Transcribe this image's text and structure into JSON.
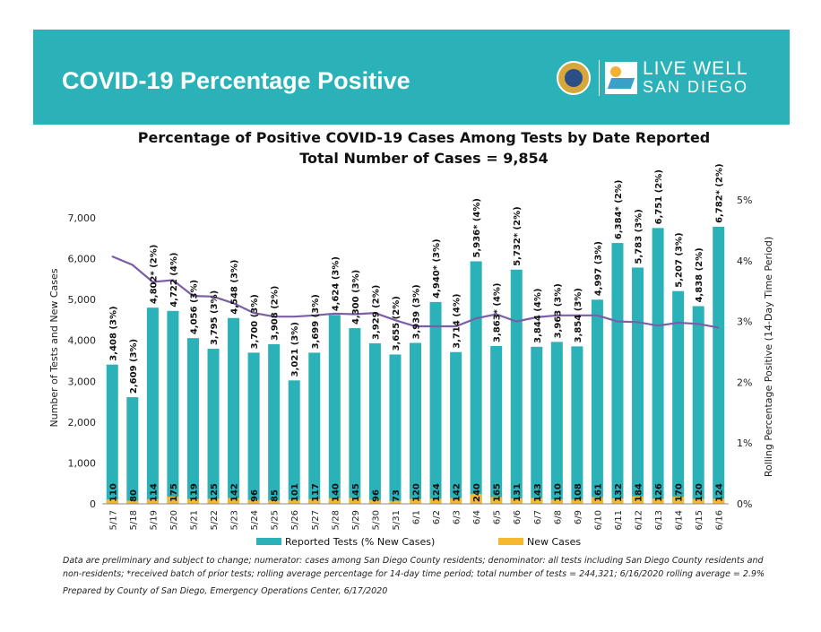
{
  "header": {
    "title": "COVID-19 Percentage Positive",
    "logo_line1": "LIVE WELL",
    "logo_line2": "SAN DIEGO"
  },
  "colors": {
    "banner": "#2bb2b8",
    "tests_bar": "#2bb2b8",
    "cases_bar": "#f5b82e",
    "rolling_line": "#7b5ea7"
  },
  "chart_data": {
    "type": "bar",
    "title": "Percentage of Positive COVID-19 Cases Among Tests by Date Reported",
    "subtitle": "Total Number of Cases = 9,854",
    "ylabel": "Number of Tests and New Cases",
    "y2label": "Rolling Percentage Positive (14-Day Time Period)",
    "ylim": [
      0,
      7000
    ],
    "y2lim": [
      0,
      5
    ],
    "yticks": [
      "0",
      "1,000",
      "2,000",
      "3,000",
      "4,000",
      "5,000",
      "6,000",
      "7,000"
    ],
    "y2ticks": [
      "0%",
      "1%",
      "2%",
      "3%",
      "4%",
      "5%"
    ],
    "categories": [
      "5/17",
      "5/18",
      "5/19",
      "5/20",
      "5/21",
      "5/22",
      "5/23",
      "5/24",
      "5/25",
      "5/26",
      "5/27",
      "5/28",
      "5/29",
      "5/30",
      "5/31",
      "6/1",
      "6/2",
      "6/3",
      "6/4",
      "6/5",
      "6/6",
      "6/7",
      "6/8",
      "6/9",
      "6/10",
      "6/11",
      "6/12",
      "6/13",
      "6/14",
      "6/15",
      "6/16"
    ],
    "series": [
      {
        "name": "Reported Tests (% New Cases)",
        "values": [
          3408,
          2609,
          4802,
          4722,
          4056,
          3795,
          4548,
          3700,
          3908,
          3021,
          3699,
          4624,
          4300,
          3929,
          3655,
          3939,
          4940,
          3714,
          5936,
          3863,
          5732,
          3844,
          3963,
          3854,
          4997,
          6384,
          5783,
          6751,
          5207,
          4838,
          6782
        ],
        "labels": [
          "3,408 (3%)",
          "2,609 (3%)",
          "4,802* (2%)",
          "4,722 (4%)",
          "4,056 (3%)",
          "3,795 (3%)",
          "4,548 (3%)",
          "3,700 (3%)",
          "3,908 (2%)",
          "3,021 (3%)",
          "3,699 (3%)",
          "4,624 (3%)",
          "4,300 (3%)",
          "3,929 (2%)",
          "3,655 (2%)",
          "3,939 (3%)",
          "4,940* (3%)",
          "3,714 (4%)",
          "5,936* (4%)",
          "3,863* (4%)",
          "5,732* (2%)",
          "3,844 (4%)",
          "3,963 (3%)",
          "3,854 (3%)",
          "4,997 (3%)",
          "6,384* (2%)",
          "5,783 (3%)",
          "6,751 (2%)",
          "5,207 (3%)",
          "4,838 (2%)",
          "6,782* (2%)"
        ]
      },
      {
        "name": "New Cases",
        "values": [
          110,
          80,
          114,
          175,
          119,
          125,
          142,
          96,
          85,
          101,
          117,
          140,
          145,
          96,
          73,
          120,
          124,
          142,
          240,
          165,
          131,
          143,
          110,
          108,
          161,
          132,
          184,
          126,
          170,
          120,
          124
        ]
      },
      {
        "type": "line",
        "axis": "right",
        "values": [
          4.07,
          3.93,
          3.65,
          3.68,
          3.42,
          3.41,
          3.3,
          3.14,
          3.08,
          3.08,
          3.1,
          3.13,
          3.12,
          3.14,
          3.02,
          2.92,
          2.92,
          2.92,
          3.05,
          3.12,
          3.0,
          3.07,
          3.1,
          3.1,
          3.1,
          3.0,
          2.99,
          2.93,
          2.98,
          2.96,
          2.9
        ]
      }
    ],
    "legend_position": "bottom"
  },
  "footnotes": {
    "line1": "Data are preliminary and subject to change; numerator: cases among San Diego County residents; denominator: all tests including San Diego County residents and non-residents; *received batch of prior tests; rolling average percentage for 14-day time period; total number of tests = 244,321; 6/16/2020 rolling average = 2.9%",
    "line2": "Prepared by County of San Diego, Emergency Operations Center, 6/17/2020"
  }
}
